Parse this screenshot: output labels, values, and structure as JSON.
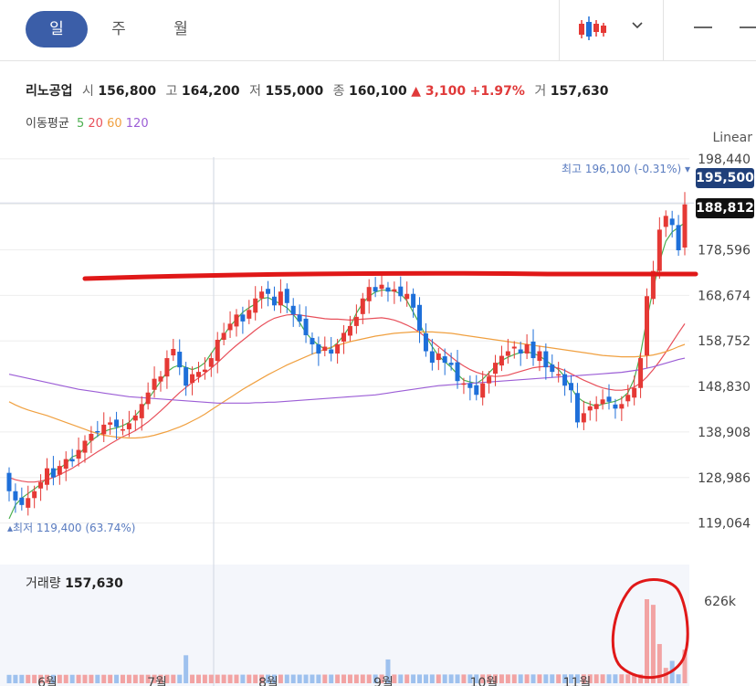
{
  "tabs": [
    {
      "label": "일",
      "active": true
    },
    {
      "label": "주",
      "active": false
    },
    {
      "label": "월",
      "active": false
    }
  ],
  "toolbar": {
    "chart_type_icon": "candlestick-icon",
    "dropdown_icon": "chevron-down-icon",
    "minimize_icon": "minus-icon"
  },
  "stock": {
    "name": "리노공업",
    "open_label": "시",
    "open": "156,800",
    "high_label": "고",
    "high": "164,200",
    "low_label": "저",
    "low": "155,000",
    "close_label": "종",
    "close": "160,100",
    "change": "▲ 3,100",
    "change_pct": "+1.97%",
    "volume_label": "거",
    "volume": "157,630"
  },
  "moving_average": {
    "label": "이동평균",
    "periods": [
      "5",
      "20",
      "60",
      "120"
    ],
    "colors": [
      "#4caf50",
      "#e8505b",
      "#f0a040",
      "#9c5ed6"
    ]
  },
  "scale_label": "Linear",
  "max_label": {
    "prefix": "최고",
    "value": "196,100 (-0.31%)"
  },
  "min_label": {
    "prefix": "최저",
    "value": "119,400 (63.74%)"
  },
  "current_price_tag": "195,500",
  "crosshair_price_tag": "188,812",
  "volume_panel": {
    "title": "거래량",
    "value": "157,630",
    "axis_label": "626k"
  },
  "colors": {
    "up": "#e53935",
    "down": "#1e6fd9",
    "accent": "#3b5ea8",
    "annotation": "#e01818"
  },
  "chart_data": {
    "type": "candlestick",
    "y_ticks": [
      "198,440",
      "188,518",
      "178,596",
      "168,674",
      "158,752",
      "148,830",
      "138,908",
      "128,986",
      "119,064"
    ],
    "ylim": [
      116000,
      200000
    ],
    "x_ticks": [
      "6월",
      "7월",
      "8월",
      "9월",
      "10월",
      "11월"
    ],
    "close_path": [
      126000,
      124000,
      123000,
      124500,
      126000,
      128000,
      131000,
      129000,
      131500,
      133000,
      132500,
      135000,
      137000,
      138500,
      139000,
      140500,
      141000,
      140000,
      139500,
      140800,
      142500,
      145000,
      147500,
      150500,
      151000,
      155000,
      157000,
      153000,
      149000,
      151500,
      152000,
      152500,
      155000,
      159000,
      160500,
      162500,
      164500,
      163000,
      165500,
      168000,
      169500,
      169000,
      166500,
      169500,
      167000,
      164500,
      163000,
      160000,
      158000,
      156000,
      157500,
      156000,
      158000,
      160500,
      162000,
      164000,
      168000,
      170500,
      169500,
      171000,
      169500,
      170000,
      168500,
      169000,
      166000,
      161000,
      156500,
      154000,
      156000,
      154000,
      153500,
      150000,
      149500,
      148500,
      147000,
      149500,
      151000,
      154000,
      155500,
      156500,
      157500,
      156000,
      158000,
      155000,
      156500,
      153000,
      152000,
      151500,
      149000,
      148000,
      141000,
      143000,
      144500,
      145000,
      146000,
      145500,
      144000,
      145000,
      147000,
      148500,
      155000,
      168500,
      174000,
      183000,
      186000,
      184000,
      178500,
      188500
    ],
    "series": [
      {
        "name": "5",
        "color": "#4caf50",
        "values": [
          120000,
          123000,
          124500,
          125500,
          126500,
          127500,
          129000,
          130500,
          131000,
          132000,
          133500,
          134000,
          135500,
          137000,
          138000,
          139000,
          139500,
          139800,
          140300,
          141000,
          142500,
          144000,
          146000,
          148000,
          150000,
          152000,
          153000,
          153500,
          153000,
          152500,
          153000,
          154000,
          156000,
          158000,
          160000,
          162000,
          163500,
          165000,
          166000,
          166800,
          168000,
          168200,
          167500,
          166800,
          166000,
          164500,
          162800,
          160500,
          159000,
          157800,
          157000,
          157200,
          158300,
          160000,
          162000,
          164800,
          167000,
          168500,
          169400,
          169800,
          169800,
          169600,
          169000,
          167500,
          165000,
          162500,
          159800,
          157500,
          155500,
          154200,
          153000,
          151500,
          150200,
          149800,
          149500,
          150400,
          151800,
          153200,
          154500,
          155200,
          155800,
          156200,
          156400,
          156000,
          155500,
          154500,
          153500,
          152500,
          151000,
          148500,
          146500,
          145500,
          145000,
          144500,
          145000,
          145300,
          145600,
          146200,
          147500,
          150500,
          156000,
          163500,
          170000,
          176000,
          180500,
          182500,
          183500,
          184500
        ]
      },
      {
        "name": "20",
        "color": "#e8505b",
        "values": [
          129000,
          128500,
          128200,
          128000,
          128000,
          128200,
          128500,
          129000,
          129600,
          130300,
          131000,
          131900,
          132800,
          133700,
          134600,
          135400,
          136300,
          137100,
          137900,
          138500,
          139200,
          140100,
          141100,
          142300,
          143500,
          144800,
          146200,
          147500,
          148600,
          149700,
          150700,
          151700,
          152800,
          154000,
          155300,
          156600,
          157800,
          158900,
          160000,
          161100,
          162100,
          163000,
          163700,
          164100,
          164400,
          164500,
          164400,
          164200,
          164000,
          163800,
          163600,
          163500,
          163500,
          163400,
          163300,
          163400,
          163500,
          163600,
          163700,
          163800,
          163600,
          163300,
          162800,
          162200,
          161500,
          160600,
          159600,
          158600,
          157500,
          156400,
          155300,
          154200,
          153300,
          152500,
          151900,
          151500,
          151200,
          151000,
          151100,
          151300,
          151700,
          152100,
          152500,
          152900,
          153100,
          153200,
          153100,
          152800,
          152300,
          151600,
          150900,
          150200,
          149600,
          149000,
          148500,
          148200,
          148000,
          148000,
          148200,
          148700,
          149600,
          150900,
          152500,
          154300,
          156300,
          158400,
          160500,
          162500
        ]
      },
      {
        "name": "60",
        "color": "#f0a040",
        "values": [
          145500,
          144800,
          144200,
          143700,
          143300,
          142900,
          142500,
          142000,
          141500,
          141000,
          140500,
          140000,
          139500,
          139000,
          138600,
          138200,
          138000,
          137800,
          137700,
          137600,
          137600,
          137700,
          137900,
          138200,
          138600,
          139000,
          139500,
          140000,
          140600,
          141300,
          142000,
          142800,
          143700,
          144600,
          145500,
          146400,
          147300,
          148200,
          149000,
          149800,
          150600,
          151400,
          152100,
          152800,
          153500,
          154100,
          154700,
          155300,
          155900,
          156400,
          156900,
          157400,
          157800,
          158200,
          158600,
          158900,
          159200,
          159500,
          159800,
          160000,
          160200,
          160400,
          160500,
          160600,
          160700,
          160700,
          160700,
          160700,
          160600,
          160500,
          160400,
          160200,
          160000,
          159800,
          159600,
          159400,
          159200,
          159000,
          158800,
          158600,
          158400,
          158200,
          158000,
          157800,
          157600,
          157400,
          157200,
          157000,
          156800,
          156600,
          156400,
          156200,
          156000,
          155800,
          155600,
          155500,
          155400,
          155300,
          155300,
          155300,
          155400,
          155500,
          155700,
          156000,
          156400,
          156900,
          157500,
          158000
        ]
      },
      {
        "name": "120",
        "color": "#9c5ed6",
        "values": [
          151500,
          151200,
          150900,
          150600,
          150300,
          150000,
          149700,
          149400,
          149100,
          148800,
          148500,
          148200,
          148000,
          147800,
          147600,
          147400,
          147200,
          147000,
          146800,
          146600,
          146500,
          146400,
          146300,
          146200,
          146100,
          146000,
          145900,
          145800,
          145700,
          145600,
          145500,
          145400,
          145300,
          145200,
          145200,
          145200,
          145200,
          145200,
          145200,
          145300,
          145300,
          145400,
          145400,
          145500,
          145600,
          145700,
          145800,
          145900,
          146000,
          146100,
          146200,
          146300,
          146400,
          146500,
          146600,
          146700,
          146800,
          146900,
          147000,
          147200,
          147400,
          147600,
          147800,
          148000,
          148200,
          148400,
          148600,
          148800,
          149000,
          149100,
          149200,
          149300,
          149400,
          149500,
          149600,
          149700,
          149800,
          149900,
          150000,
          150100,
          150200,
          150300,
          150400,
          150500,
          150600,
          150700,
          150800,
          150900,
          151000,
          151100,
          151200,
          151300,
          151400,
          151500,
          151600,
          151700,
          151800,
          151900,
          152100,
          152300,
          152500,
          152800,
          153100,
          153500,
          153900,
          154300,
          154700,
          155000
        ]
      }
    ],
    "volume_max": 626000,
    "xlabel": "",
    "ylabel": ""
  }
}
